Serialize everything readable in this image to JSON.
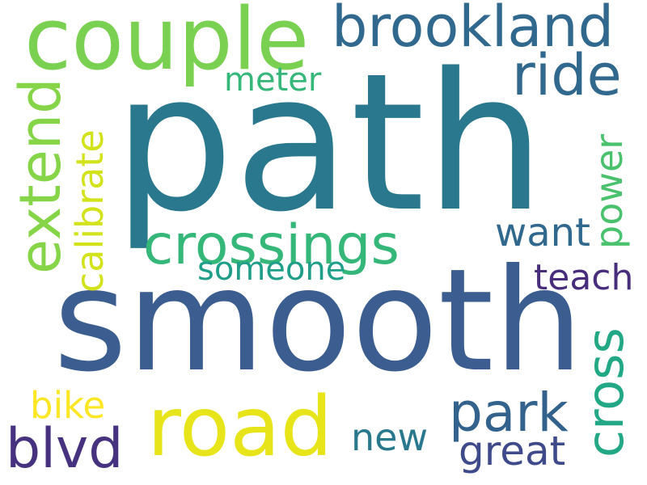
{
  "words": {
    "path": {
      "text": "path",
      "color": "#2a788e"
    },
    "smooth": {
      "text": "smooth",
      "color": "#3b5d8f"
    },
    "couple": {
      "text": "couple",
      "color": "#7ad151"
    },
    "road": {
      "text": "road",
      "color": "#e7e419"
    },
    "brookland": {
      "text": "brookland",
      "color": "#31688e"
    },
    "ride": {
      "text": "ride",
      "color": "#31688e"
    },
    "crossings": {
      "text": "crossings",
      "color": "#35b779"
    },
    "extend": {
      "text": "extend",
      "color": "#86d549"
    },
    "calibrate": {
      "text": "calibrate",
      "color": "#d2e21b"
    },
    "blvd": {
      "text": "blvd",
      "color": "#46327e"
    },
    "park": {
      "text": "park",
      "color": "#33638d"
    },
    "cross": {
      "text": "cross",
      "color": "#22a884"
    },
    "meter": {
      "text": "meter",
      "color": "#35b779"
    },
    "want": {
      "text": "want",
      "color": "#31688e"
    },
    "power": {
      "text": "power",
      "color": "#4ac16d"
    },
    "someone": {
      "text": "someone",
      "color": "#1f9e89"
    },
    "teach": {
      "text": "teach",
      "color": "#472d7b"
    },
    "bike": {
      "text": "bike",
      "color": "#fde725"
    },
    "new": {
      "text": "new",
      "color": "#2a788e"
    },
    "great": {
      "text": "great",
      "color": "#3e4a89"
    }
  }
}
